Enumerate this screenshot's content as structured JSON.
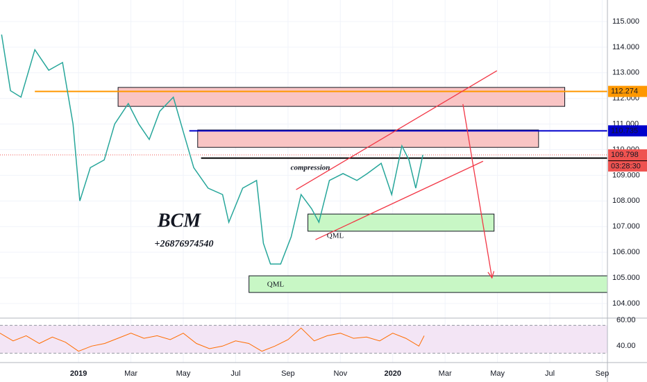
{
  "chart_data": [
    {
      "type": "line",
      "x": [
        -2.94,
        -2.6,
        -2.2,
        -1.67,
        -1.14,
        -0.61,
        -0.21,
        0.05,
        0.45,
        0.98,
        1.38,
        1.9,
        2.3,
        2.7,
        3.1,
        3.62,
        4.0,
        4.4,
        4.95,
        5.5,
        5.74,
        6.27,
        6.8,
        7.06,
        7.33,
        7.72,
        8.12,
        8.5,
        8.9,
        9.18,
        9.58,
        10.1,
        10.63,
        11.03,
        11.56,
        11.96,
        12.35,
        12.62,
        12.88,
        13.15
      ],
      "series": [
        {
          "color": "#26a69a",
          "values": [
            114.49,
            112.3,
            112.05,
            113.9,
            113.1,
            113.4,
            111.0,
            108.0,
            109.3,
            109.6,
            111.0,
            111.8,
            111.0,
            110.4,
            111.5,
            112.05,
            110.7,
            109.3,
            108.5,
            108.25,
            107.17,
            108.5,
            108.8,
            106.35,
            105.54,
            105.54,
            106.6,
            108.25,
            107.7,
            107.17,
            108.8,
            109.07,
            108.8,
            109.07,
            109.47,
            108.25,
            110.15,
            109.6,
            108.5,
            109.798
          ]
        }
      ],
      "xlim": [
        -3,
        20.2
      ],
      "ylim": [
        103.43,
        115.84
      ],
      "xticks": [
        {
          "value": 0,
          "label": "2019"
        },
        {
          "value": 2,
          "label": "Mar"
        },
        {
          "value": 4,
          "label": "May"
        },
        {
          "value": 6,
          "label": "Jul"
        },
        {
          "value": 8,
          "label": "Sep"
        },
        {
          "value": 10,
          "label": "Nov"
        },
        {
          "value": 12,
          "label": "2020"
        },
        {
          "value": 14,
          "label": "Mar"
        },
        {
          "value": 16,
          "label": "May"
        },
        {
          "value": 18,
          "label": "Jul"
        },
        {
          "value": 20,
          "label": "Sep"
        }
      ],
      "yticks": [
        {
          "value": 104,
          "label": "104.000"
        },
        {
          "value": 105,
          "label": "105.000"
        },
        {
          "value": 106,
          "label": "106.000"
        },
        {
          "value": 107,
          "label": "107.000"
        },
        {
          "value": 108,
          "label": "108.000"
        },
        {
          "value": 109,
          "label": "109.000"
        },
        {
          "value": 110,
          "label": "110.000"
        },
        {
          "value": 111,
          "label": "111.000"
        },
        {
          "value": 112,
          "label": "112.000"
        },
        {
          "value": 113,
          "label": "113.000"
        },
        {
          "value": 114,
          "label": "114.000"
        },
        {
          "value": 115,
          "label": "115.000"
        }
      ],
      "grid": true,
      "zones": [
        {
          "x": [
            1.51,
            18.57
          ],
          "y": [
            111.69,
            112.43
          ],
          "color": "#f9c4c4"
        },
        {
          "x": [
            4.55,
            17.57
          ],
          "y": [
            110.09,
            110.77
          ],
          "color": "#f9c4c4"
        },
        {
          "x": [
            8.76,
            15.87
          ],
          "y": [
            106.82,
            107.49
          ],
          "color": "#c8f7c5"
        },
        {
          "x": [
            6.51,
            20.2
          ],
          "y": [
            104.43,
            105.08
          ],
          "color": "#c8f7c5"
        }
      ],
      "levels": [
        {
          "value": 112.274,
          "from": -1.67,
          "color": "#ff9800"
        },
        {
          "value": 110.735,
          "from": 4.23,
          "color": "#0000cc"
        },
        {
          "value": 109.671,
          "from": 4.68,
          "color": "#000000"
        },
        {
          "value": 109.798,
          "from": -3,
          "color": "#ef5350"
        }
      ],
      "countdown": "03:28:30",
      "trendlines": [
        {
          "x": [
            8.31,
            15.98
          ],
          "y": [
            108.44,
            113.08
          ],
          "color": "#f23645"
        },
        {
          "x": [
            9.05,
            15.45
          ],
          "y": [
            106.49,
            109.55
          ],
          "color": "#f23645"
        },
        {
          "x": [
            14.68,
            15.79
          ],
          "y": [
            111.78,
            105.0
          ],
          "color": "#f23645",
          "arrow": true
        }
      ],
      "annotations": [
        "BCM",
        "+26876974540",
        "compression",
        "QML",
        "QML"
      ]
    },
    {
      "type": "line",
      "x": [
        -3,
        -2.5,
        -2,
        -1.5,
        -1,
        -0.5,
        0,
        0.5,
        1,
        1.5,
        2,
        2.5,
        3,
        3.5,
        4,
        4.5,
        5,
        5.5,
        6,
        6.5,
        7,
        7.5,
        8,
        8.5,
        9,
        9.5,
        10,
        10.5,
        11,
        11.5,
        12,
        12.5,
        13,
        13.2
      ],
      "series": [
        {
          "color": "#ff6d00",
          "values": [
            50,
            44,
            48,
            42,
            47,
            43,
            36,
            40,
            42,
            46,
            50,
            46,
            48,
            45,
            50,
            42,
            38,
            40,
            44,
            42,
            36,
            40,
            45,
            54,
            44,
            48,
            50,
            46,
            47,
            44,
            50,
            46,
            40,
            48
          ]
        }
      ],
      "xlim": [
        -3,
        20.2
      ],
      "ylim": [
        27.2,
        61.7
      ],
      "yticks": [
        {
          "value": 60,
          "label": "60.00"
        },
        {
          "value": 40,
          "label": "40.00"
        }
      ],
      "band": [
        34.4,
        56.1
      ]
    }
  ]
}
